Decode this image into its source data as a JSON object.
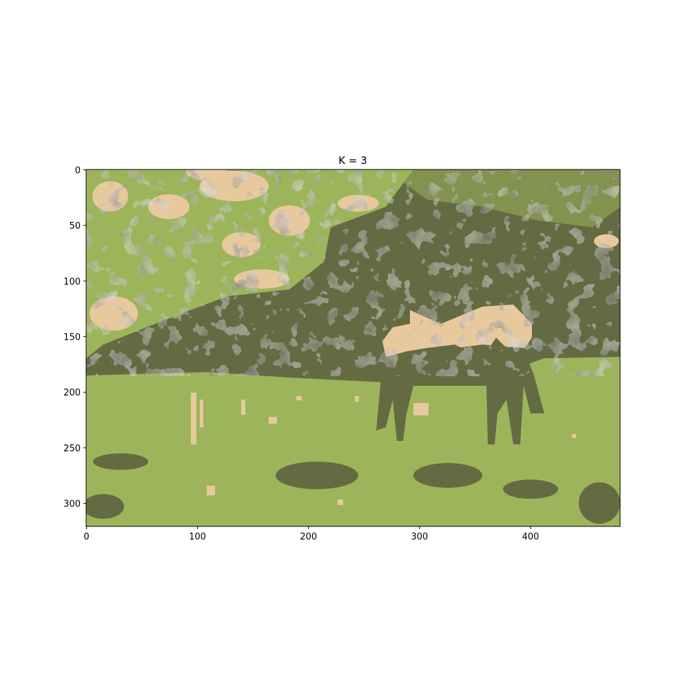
{
  "chart_data": {
    "type": "heatmap",
    "title": "K = 3",
    "xlabel": "",
    "ylabel": "",
    "xlim": [
      0,
      481
    ],
    "ylim": [
      321,
      0
    ],
    "x_ticks": [
      "0",
      "100",
      "200",
      "300",
      "400"
    ],
    "y_ticks": [
      "0",
      "50",
      "100",
      "150",
      "200",
      "250",
      "300"
    ],
    "grid": false,
    "palette": {
      "dark_green": "#646b43",
      "light_green": "#9cb55a",
      "beige": "#e8c99e"
    },
    "image_description_cluster_count": 3
  }
}
